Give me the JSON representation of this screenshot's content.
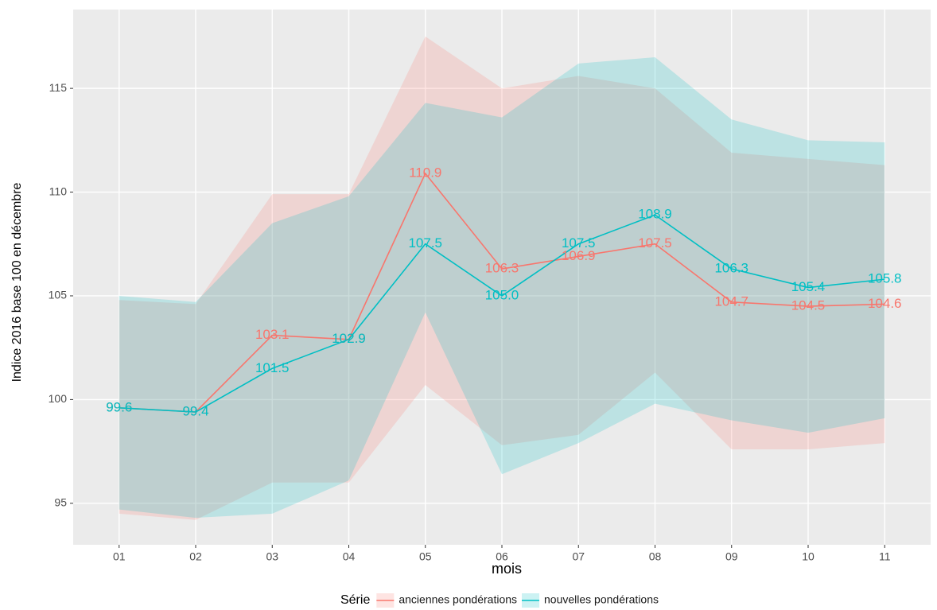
{
  "chart_data": {
    "type": "line",
    "x_label": "mois",
    "y_label": "Indice 2016 base 100 en décembre",
    "legend_title": "Série",
    "legend": "bottom",
    "grid": true,
    "categories": [
      "01",
      "02",
      "03",
      "04",
      "05",
      "06",
      "07",
      "08",
      "09",
      "10",
      "11"
    ],
    "ylim": [
      93,
      118.8
    ],
    "yticks": [
      95,
      100,
      105,
      110,
      115
    ],
    "series": [
      {
        "name": "anciennes pondérations",
        "color": "#F8766D",
        "values": [
          99.6,
          99.4,
          103.1,
          102.9,
          110.9,
          106.3,
          106.9,
          107.5,
          104.7,
          104.5,
          104.6
        ],
        "value_labels": [
          "99.6",
          "99.4",
          "103.1",
          "102.9",
          "110.9",
          "106.3",
          "106.9",
          "107.5",
          "104.7",
          "104.5",
          "104.6"
        ],
        "lower": [
          94.5,
          94.2,
          96.0,
          96.0,
          100.7,
          97.8,
          98.3,
          101.3,
          97.6,
          97.6,
          97.9
        ],
        "upper": [
          104.8,
          104.6,
          109.9,
          109.9,
          117.5,
          115.0,
          115.6,
          115.0,
          111.9,
          111.6,
          111.3
        ]
      },
      {
        "name": "nouvelles pondérations",
        "color": "#00BFC4",
        "values": [
          99.6,
          99.4,
          101.5,
          102.9,
          107.5,
          105.0,
          107.5,
          108.9,
          106.3,
          105.4,
          105.8
        ],
        "value_labels": [
          "99.6",
          "99.4",
          "101.5",
          "102.9",
          "107.5",
          "105.0",
          "107.5",
          "108.9",
          "106.3",
          "105.4",
          "105.8"
        ],
        "lower": [
          94.7,
          94.3,
          94.5,
          96.1,
          104.2,
          96.4,
          97.9,
          99.8,
          99.0,
          98.4,
          99.1
        ],
        "upper": [
          105.0,
          104.7,
          108.5,
          109.8,
          114.3,
          113.6,
          116.2,
          116.5,
          113.5,
          112.5,
          112.4
        ]
      }
    ]
  }
}
